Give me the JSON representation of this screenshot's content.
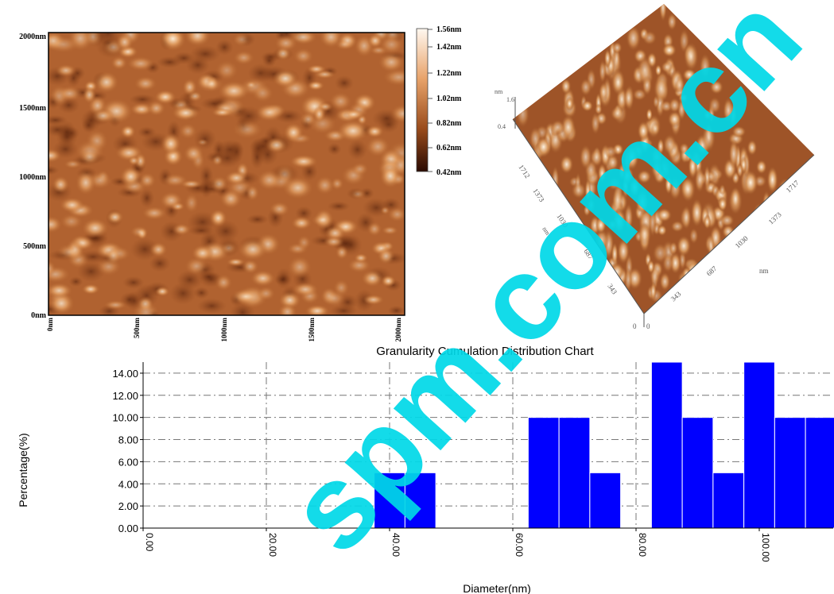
{
  "afm2d": {
    "y_tick_labels": [
      "2000nm",
      "1500nm",
      "1000nm",
      "500nm",
      "0nm"
    ],
    "x_tick_labels": [
      "0nm",
      "500nm",
      "1000nm",
      "1500nm",
      "2000nm"
    ],
    "colorbar_labels": [
      "1.56nm",
      "1.42nm",
      "1.22nm",
      "1.02nm",
      "0.82nm",
      "0.62nm",
      "0.42nm"
    ],
    "colors": {
      "low": "#3a1206",
      "mid": "#b4652c",
      "high": "#fff2dc"
    }
  },
  "afm3d": {
    "z_unit": "nm",
    "z_labels": [
      "1.6",
      "0.4",
      "0"
    ],
    "left_axis_labels": [
      "1712",
      "1373",
      "1030",
      "687",
      "343"
    ],
    "left_axis_unit": "nm",
    "right_axis_labels": [
      "1717",
      "1373",
      "1030",
      "687",
      "343"
    ],
    "right_axis_unit": "nm",
    "origin_label": "0"
  },
  "chart_data": {
    "type": "bar",
    "title": "Granularity Cumulation Distribution  Chart",
    "xlabel": "Diameter(nm)",
    "ylabel": "Percentage(%)",
    "xlim": [
      0,
      112
    ],
    "ylim": [
      0,
      15
    ],
    "x_ticks": [
      0,
      20,
      40,
      60,
      80,
      100
    ],
    "x_tick_labels": [
      "0.00",
      "20.00",
      "40.00",
      "60.00",
      "80.00",
      "100.00"
    ],
    "y_ticks": [
      0,
      2,
      4,
      6,
      8,
      10,
      12,
      14
    ],
    "y_tick_labels": [
      "0.00",
      "2.00",
      "4.00",
      "6.00",
      "8.00",
      "10.00",
      "12.00",
      "14.00"
    ],
    "grid": true,
    "bar_color": "#0000ff",
    "bars": [
      {
        "x0": 37.5,
        "x1": 42.5,
        "value": 5
      },
      {
        "x0": 42.5,
        "x1": 47.5,
        "value": 5
      },
      {
        "x0": 62.5,
        "x1": 67.5,
        "value": 10
      },
      {
        "x0": 67.5,
        "x1": 72.5,
        "value": 10
      },
      {
        "x0": 72.5,
        "x1": 77.5,
        "value": 5
      },
      {
        "x0": 82.5,
        "x1": 87.5,
        "value": 15
      },
      {
        "x0": 87.5,
        "x1": 92.5,
        "value": 10
      },
      {
        "x0": 92.5,
        "x1": 97.5,
        "value": 5
      },
      {
        "x0": 97.5,
        "x1": 102.5,
        "value": 15
      },
      {
        "x0": 102.5,
        "x1": 107.5,
        "value": 10
      },
      {
        "x0": 107.5,
        "x1": 112.5,
        "value": 10
      }
    ]
  },
  "watermark": {
    "text": "spm.com.cn",
    "color": "#00d8e8"
  }
}
